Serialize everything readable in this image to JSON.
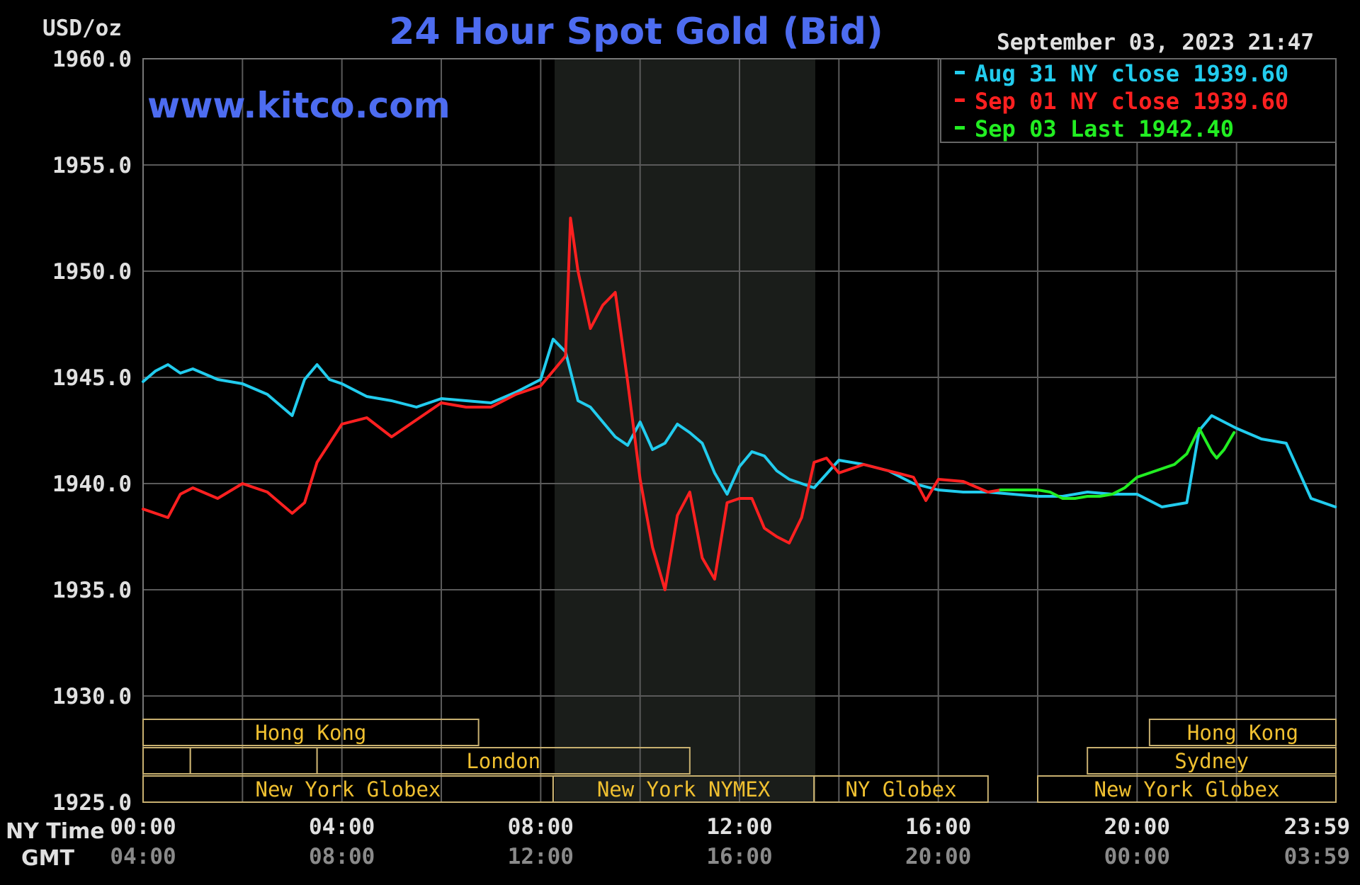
{
  "header": {
    "unit_label": "USD/oz",
    "title": "24 Hour Spot Gold (Bid)",
    "timestamp": "September 03, 2023 21:47",
    "watermark": "www.kitco.com"
  },
  "legend": [
    {
      "text": "Aug 31 NY close 1939.60",
      "color": "#22ccee"
    },
    {
      "text": "Sep 01 NY close 1939.60",
      "color": "#ff2020"
    },
    {
      "text": "Sep 03 Last 1942.40",
      "color": "#22ee22"
    }
  ],
  "x_axis": {
    "row_label_ny": "NY Time",
    "row_label_gmt": "GMT",
    "ny_ticks": [
      "00:00",
      "04:00",
      "08:00",
      "12:00",
      "16:00",
      "20:00",
      "23:59"
    ],
    "gmt_ticks": [
      "04:00",
      "08:00",
      "12:00",
      "16:00",
      "20:00",
      "00:00",
      "03:59"
    ]
  },
  "y_axis": {
    "ticks": [
      "1960.0",
      "1955.0",
      "1950.0",
      "1945.0",
      "1940.0",
      "1935.0",
      "1930.0",
      "1925.0"
    ]
  },
  "sessions": {
    "row1": [
      {
        "label": "Hong Kong"
      },
      {
        "label": "Hong Kong"
      }
    ],
    "row2": [
      {
        "label": ""
      },
      {
        "label": ""
      },
      {
        "label": "London"
      },
      {
        "label": "Sydney"
      }
    ],
    "row3": [
      {
        "label": "New York Globex"
      },
      {
        "label": "New York NYMEX"
      },
      {
        "label": "NY Globex"
      },
      {
        "label": "New York Globex"
      }
    ]
  },
  "colors": {
    "background": "#000000",
    "grid": "#5a5a5a",
    "title": "#4d6cf0",
    "axis_text": "#e0e0e0",
    "session_text": "#f0c030",
    "session_border": "#c8b070",
    "nymex_shade": "#1a1d1a",
    "gmt_text": "#8a8a8a"
  },
  "chart_data": {
    "type": "line",
    "title": "24 Hour Spot Gold (Bid)",
    "ylabel": "USD/oz",
    "xlabel": "NY Time",
    "ylim": [
      1925,
      1960
    ],
    "xlim_hours": [
      0,
      24
    ],
    "grid": true,
    "legend_position": "top-right",
    "series": [
      {
        "name": "Aug 31 NY close 1939.60",
        "color": "#22ccee",
        "x_hours": [
          0,
          0.25,
          0.5,
          0.75,
          1.0,
          1.5,
          2.0,
          2.5,
          3.0,
          3.25,
          3.5,
          3.75,
          4.0,
          4.5,
          5.0,
          5.5,
          6.0,
          6.5,
          7.0,
          7.5,
          8.0,
          8.25,
          8.5,
          8.75,
          9.0,
          9.25,
          9.5,
          9.75,
          10.0,
          10.25,
          10.5,
          10.75,
          11.0,
          11.25,
          11.5,
          11.75,
          12.0,
          12.25,
          12.5,
          12.75,
          13.0,
          13.5,
          14.0,
          14.5,
          15.0,
          15.5,
          16.0,
          16.5,
          17.0,
          17.5,
          18.0,
          18.5,
          19.0,
          19.5,
          20.0,
          20.5,
          21.0,
          21.25,
          21.5,
          22.0,
          22.5,
          23.0,
          23.5,
          23.99
        ],
        "values": [
          1944.8,
          1945.3,
          1945.6,
          1945.2,
          1945.4,
          1944.9,
          1944.7,
          1944.2,
          1943.2,
          1944.9,
          1945.6,
          1944.9,
          1944.7,
          1944.1,
          1943.9,
          1943.6,
          1944.0,
          1943.9,
          1943.8,
          1944.3,
          1944.9,
          1946.8,
          1946.2,
          1943.9,
          1943.6,
          1942.9,
          1942.2,
          1941.8,
          1942.9,
          1941.6,
          1941.9,
          1942.8,
          1942.4,
          1941.9,
          1940.5,
          1939.5,
          1940.8,
          1941.5,
          1941.3,
          1940.6,
          1940.2,
          1939.8,
          1941.1,
          1940.9,
          1940.6,
          1940.0,
          1939.7,
          1939.6,
          1939.6,
          1939.5,
          1939.4,
          1939.4,
          1939.6,
          1939.5,
          1939.5,
          1938.9,
          1939.1,
          1942.5,
          1943.2,
          1942.6,
          1942.1,
          1941.9,
          1939.3,
          1938.9
        ]
      },
      {
        "name": "Sep 01 NY close 1939.60",
        "color": "#ff2020",
        "x_hours": [
          0,
          0.5,
          0.75,
          1.0,
          1.5,
          2.0,
          2.5,
          3.0,
          3.25,
          3.5,
          4.0,
          4.5,
          5.0,
          5.5,
          6.0,
          6.5,
          7.0,
          7.5,
          8.0,
          8.25,
          8.5,
          8.6,
          8.75,
          9.0,
          9.25,
          9.5,
          9.75,
          10.0,
          10.25,
          10.5,
          10.75,
          11.0,
          11.25,
          11.5,
          11.75,
          12.0,
          12.25,
          12.5,
          12.75,
          13.0,
          13.25,
          13.5,
          13.75,
          14.0,
          14.5,
          15.0,
          15.5,
          15.75,
          16.0,
          16.5,
          17.0,
          17.25
        ],
        "values": [
          1938.8,
          1938.4,
          1939.5,
          1939.8,
          1939.3,
          1940.0,
          1939.6,
          1938.6,
          1939.1,
          1941.0,
          1942.8,
          1943.1,
          1942.2,
          1943.0,
          1943.8,
          1943.6,
          1943.6,
          1944.2,
          1944.6,
          1945.3,
          1946.0,
          1952.5,
          1950.0,
          1947.3,
          1948.4,
          1949.0,
          1944.8,
          1940.2,
          1937.0,
          1935.0,
          1938.5,
          1939.6,
          1936.5,
          1935.5,
          1939.1,
          1939.3,
          1939.3,
          1937.9,
          1937.5,
          1937.2,
          1938.4,
          1941.0,
          1941.2,
          1940.5,
          1940.9,
          1940.6,
          1940.3,
          1939.2,
          1940.2,
          1940.1,
          1939.6,
          1939.7
        ]
      },
      {
        "name": "Sep 03 Last 1942.40",
        "color": "#22ee22",
        "x_hours": [
          17.25,
          17.75,
          18.0,
          18.25,
          18.5,
          18.75,
          19.0,
          19.25,
          19.5,
          19.75,
          20.0,
          20.25,
          20.5,
          20.75,
          21.0,
          21.25,
          21.5,
          21.6,
          21.75,
          21.95
        ],
        "values": [
          1939.7,
          1939.7,
          1939.7,
          1939.6,
          1939.3,
          1939.3,
          1939.4,
          1939.4,
          1939.5,
          1939.8,
          1940.3,
          1940.5,
          1940.7,
          1940.9,
          1941.4,
          1942.6,
          1941.5,
          1941.2,
          1941.6,
          1942.4
        ]
      }
    ]
  }
}
